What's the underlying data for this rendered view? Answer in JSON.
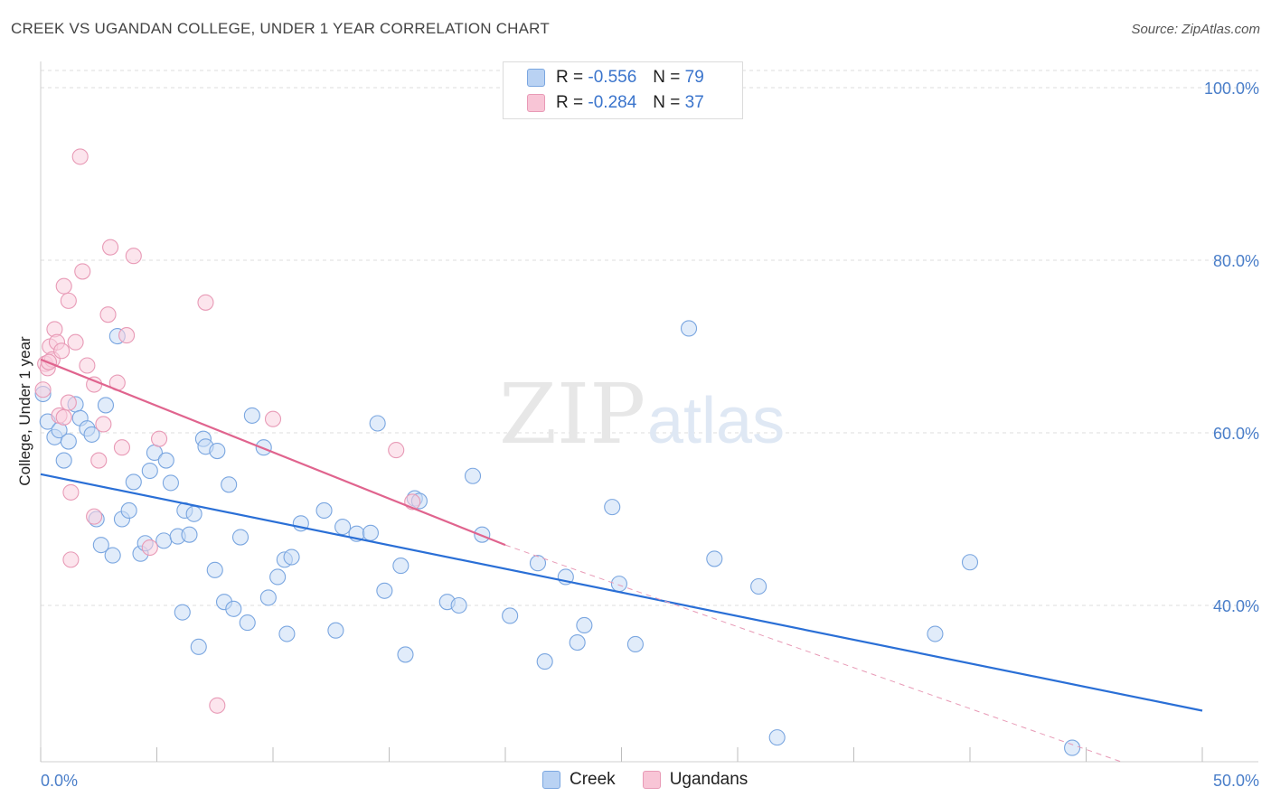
{
  "header": {
    "title": "CREEK VS UGANDAN COLLEGE, UNDER 1 YEAR CORRELATION CHART",
    "source": "Source: ZipAtlas.com"
  },
  "legend": {
    "rows": [
      {
        "r_label": "R =",
        "r_value": "-0.556",
        "n_label": "N =",
        "n_value": "79",
        "color": "#b9d2f3"
      },
      {
        "r_label": "R =",
        "r_value": "-0.284",
        "n_label": "N =",
        "n_value": "37",
        "color": "#f8c5d6"
      }
    ]
  },
  "bottom_legend": {
    "series1": "Creek",
    "series2": "Ugandans"
  },
  "watermark": {
    "part1": "ZIP",
    "part2": "atlas"
  },
  "chart_data": {
    "type": "scatter",
    "title": "CREEK VS UGANDAN COLLEGE, UNDER 1 YEAR CORRELATION CHART",
    "xlabel": "",
    "ylabel": "College, Under 1 year",
    "xlim": [
      0,
      50
    ],
    "ylim": [
      22,
      104
    ],
    "x_tick_labels": [
      "0.0%",
      "50.0%"
    ],
    "y_tick_labels": [
      "100.0%",
      "80.0%",
      "60.0%",
      "40.0%"
    ],
    "y_tick_values": [
      100,
      80,
      60,
      40
    ],
    "grid": true,
    "series": [
      {
        "name": "Creek",
        "color": "#7aa6e0",
        "fill": "#c9dcf5",
        "trend": {
          "x1": 0,
          "y1": 55.2,
          "x2": 50,
          "y2": 27.8,
          "color": "#2a6fd6"
        },
        "points": [
          [
            0.1,
            64.5
          ],
          [
            0.3,
            61.3
          ],
          [
            0.6,
            59.5
          ],
          [
            0.8,
            60.3
          ],
          [
            1.0,
            56.8
          ],
          [
            1.2,
            59.0
          ],
          [
            1.5,
            63.3
          ],
          [
            1.7,
            61.7
          ],
          [
            2.0,
            60.5
          ],
          [
            2.2,
            59.8
          ],
          [
            2.4,
            50.0
          ],
          [
            2.6,
            47.0
          ],
          [
            2.8,
            63.2
          ],
          [
            3.1,
            45.8
          ],
          [
            3.3,
            71.2
          ],
          [
            3.5,
            50.0
          ],
          [
            3.8,
            51.0
          ],
          [
            4.0,
            54.3
          ],
          [
            4.3,
            46.0
          ],
          [
            4.5,
            47.2
          ],
          [
            4.7,
            55.6
          ],
          [
            4.9,
            57.7
          ],
          [
            5.3,
            47.5
          ],
          [
            5.4,
            56.8
          ],
          [
            5.6,
            54.2
          ],
          [
            5.9,
            48.0
          ],
          [
            6.2,
            51.0
          ],
          [
            6.4,
            48.2
          ],
          [
            6.6,
            50.6
          ],
          [
            6.1,
            39.2
          ],
          [
            6.8,
            35.2
          ],
          [
            7.0,
            59.3
          ],
          [
            7.1,
            58.4
          ],
          [
            7.5,
            44.1
          ],
          [
            7.6,
            57.9
          ],
          [
            7.9,
            40.4
          ],
          [
            8.1,
            54.0
          ],
          [
            8.3,
            39.6
          ],
          [
            8.6,
            47.9
          ],
          [
            8.9,
            38.0
          ],
          [
            9.1,
            62.0
          ],
          [
            9.6,
            58.3
          ],
          [
            9.8,
            40.9
          ],
          [
            10.2,
            43.3
          ],
          [
            10.5,
            45.3
          ],
          [
            10.6,
            36.7
          ],
          [
            10.8,
            45.6
          ],
          [
            11.2,
            49.5
          ],
          [
            12.2,
            51.0
          ],
          [
            12.7,
            37.1
          ],
          [
            13.0,
            49.1
          ],
          [
            13.6,
            48.3
          ],
          [
            14.2,
            48.4
          ],
          [
            14.5,
            61.1
          ],
          [
            14.8,
            41.7
          ],
          [
            15.5,
            44.6
          ],
          [
            15.7,
            34.3
          ],
          [
            16.1,
            52.4
          ],
          [
            16.3,
            52.1
          ],
          [
            17.5,
            40.4
          ],
          [
            18.0,
            40.0
          ],
          [
            18.6,
            55.0
          ],
          [
            19.0,
            48.2
          ],
          [
            20.2,
            38.8
          ],
          [
            21.4,
            44.9
          ],
          [
            21.7,
            33.5
          ],
          [
            22.6,
            43.3
          ],
          [
            23.1,
            35.7
          ],
          [
            23.4,
            37.7
          ],
          [
            24.6,
            51.4
          ],
          [
            24.9,
            42.5
          ],
          [
            25.6,
            35.5
          ],
          [
            27.9,
            72.1
          ],
          [
            29.0,
            45.4
          ],
          [
            30.9,
            42.2
          ],
          [
            31.7,
            24.7
          ],
          [
            38.5,
            36.7
          ],
          [
            40.0,
            45.0
          ],
          [
            44.4,
            23.5
          ]
        ]
      },
      {
        "name": "Ugandans",
        "color": "#e89ab6",
        "fill": "#f9d0de",
        "trend": {
          "x1": 0,
          "y1": 68.5,
          "x2": 20,
          "y2": 47.0,
          "color": "#e0648e"
        },
        "trend_dashed": {
          "x1": 20,
          "y1": 47.0,
          "x2": 46.5,
          "y2": 20.5
        },
        "points": [
          [
            0.1,
            65.0
          ],
          [
            0.2,
            68.0
          ],
          [
            0.3,
            67.5
          ],
          [
            0.4,
            70.0
          ],
          [
            0.5,
            68.5
          ],
          [
            0.6,
            72.0
          ],
          [
            0.7,
            70.5
          ],
          [
            0.8,
            62.0
          ],
          [
            0.9,
            69.5
          ],
          [
            1.0,
            61.8
          ],
          [
            1.0,
            77.0
          ],
          [
            1.2,
            63.5
          ],
          [
            1.2,
            75.3
          ],
          [
            1.3,
            53.1
          ],
          [
            1.3,
            45.3
          ],
          [
            1.5,
            70.5
          ],
          [
            1.7,
            92.0
          ],
          [
            1.8,
            78.7
          ],
          [
            2.0,
            67.8
          ],
          [
            2.3,
            50.3
          ],
          [
            2.3,
            65.6
          ],
          [
            2.5,
            56.8
          ],
          [
            2.7,
            61.0
          ],
          [
            2.9,
            73.7
          ],
          [
            3.0,
            81.5
          ],
          [
            3.3,
            65.8
          ],
          [
            3.5,
            58.3
          ],
          [
            3.7,
            71.3
          ],
          [
            4.0,
            80.5
          ],
          [
            4.7,
            46.7
          ],
          [
            5.1,
            59.3
          ],
          [
            7.1,
            75.1
          ],
          [
            7.6,
            28.4
          ],
          [
            10.0,
            61.6
          ],
          [
            15.3,
            58.0
          ],
          [
            16.0,
            52.0
          ],
          [
            0.35,
            68.2
          ]
        ]
      }
    ]
  }
}
